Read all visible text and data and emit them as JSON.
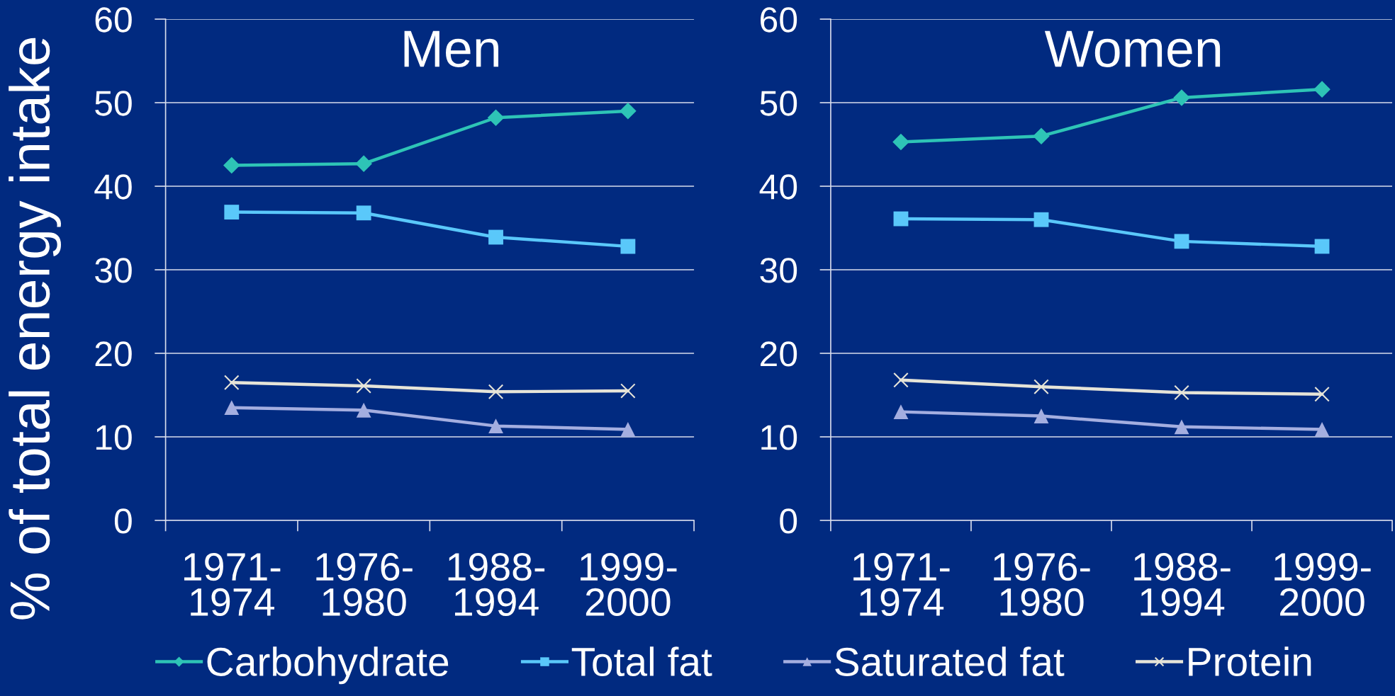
{
  "chart_data": [
    {
      "type": "line",
      "title": "Men",
      "ylabel": "% of total energy intake",
      "categories": [
        "1971-\n1974",
        "1976-\n1980",
        "1988-\n1994",
        "1999-\n2000"
      ],
      "series": [
        {
          "name": "Carbohydrate",
          "color": "#2ec4b6",
          "marker": "diamond",
          "values": [
            42.5,
            42.7,
            48.2,
            49.0
          ]
        },
        {
          "name": "Total fat",
          "color": "#5ac8fa",
          "marker": "square",
          "values": [
            36.9,
            36.8,
            33.9,
            32.8
          ]
        },
        {
          "name": "Saturated fat",
          "color": "#a4aee0",
          "marker": "triangle",
          "values": [
            13.5,
            13.2,
            11.3,
            10.9
          ]
        },
        {
          "name": "Protein",
          "color": "#e6e4d8",
          "marker": "cross",
          "values": [
            16.5,
            16.1,
            15.4,
            15.5
          ]
        }
      ],
      "ylim": [
        0,
        60
      ],
      "yticks": [
        0,
        10,
        20,
        30,
        40,
        50,
        60
      ],
      "grid": "y",
      "legend": "bottom",
      "line_style": "solid"
    },
    {
      "type": "line",
      "title": "Women",
      "categories": [
        "1971-\n1974",
        "1976-\n1980",
        "1988-\n1994",
        "1999-\n2000"
      ],
      "series": [
        {
          "name": "Carbohydrate",
          "color": "#2ec4b6",
          "marker": "diamond",
          "values": [
            45.3,
            46.0,
            50.6,
            51.6
          ]
        },
        {
          "name": "Total fat",
          "color": "#5ac8fa",
          "marker": "square",
          "values": [
            36.1,
            36.0,
            33.4,
            32.8
          ]
        },
        {
          "name": "Saturated fat",
          "color": "#a4aee0",
          "marker": "triangle",
          "values": [
            13.0,
            12.5,
            11.2,
            10.9
          ]
        },
        {
          "name": "Protein",
          "color": "#e6e4d8",
          "marker": "cross",
          "values": [
            16.8,
            16.0,
            15.3,
            15.1
          ]
        }
      ],
      "ylim": [
        0,
        60
      ],
      "yticks": [
        0,
        10,
        20,
        30,
        40,
        50,
        60
      ],
      "grid": "y",
      "legend": "bottom",
      "line_style": "solid"
    }
  ]
}
